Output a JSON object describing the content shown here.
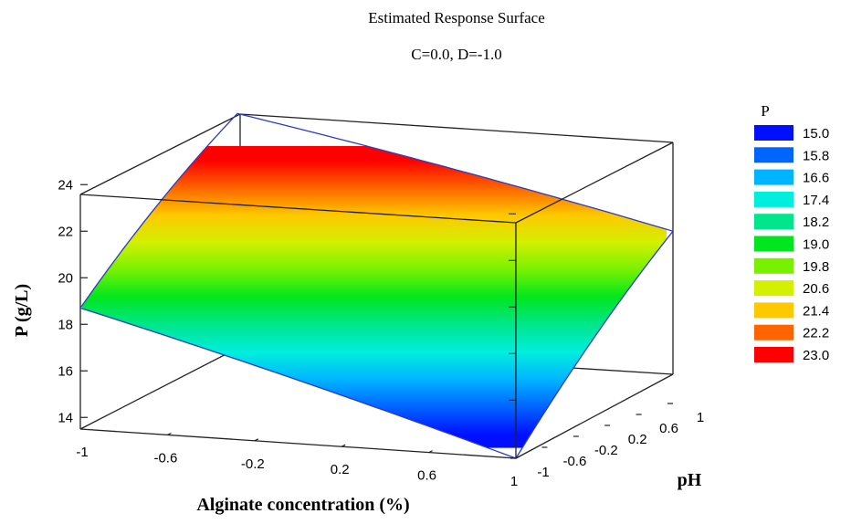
{
  "chart_data": {
    "type": "surface",
    "title": "Estimated Response Surface",
    "subtitle": "C=0.0, D=-1.0",
    "xlabel": "Alginate concentration (%)",
    "ylabel": "P (g/L)",
    "zlabel": "pH",
    "x_ticks": [
      "-1",
      "-0.6",
      "-0.2",
      "0.2",
      "0.6",
      "1"
    ],
    "y_ticks": [
      "14",
      "16",
      "18",
      "20",
      "22",
      "24"
    ],
    "z_ticks": [
      "-1",
      "-0.6",
      "-0.2",
      "0.2",
      "0.6",
      "1"
    ],
    "xlim": [
      -1,
      1
    ],
    "zlim": [
      -1,
      1
    ],
    "ylim": [
      13.5,
      24.5
    ],
    "corner_values": [
      {
        "alginate": -1,
        "ph": -1,
        "P": 18.7
      },
      {
        "alginate": 1,
        "ph": -1,
        "P": 13.5
      },
      {
        "alginate": -1,
        "ph": 1,
        "P": 24.7
      },
      {
        "alginate": 1,
        "ph": 1,
        "P": 20.9
      }
    ],
    "legend": {
      "title": "P",
      "position": "right",
      "entries": [
        {
          "label": "15.0",
          "color": "#0010ff"
        },
        {
          "label": "15.8",
          "color": "#0064ff"
        },
        {
          "label": "16.6",
          "color": "#00b4ff"
        },
        {
          "label": "17.4",
          "color": "#00eedd"
        },
        {
          "label": "18.2",
          "color": "#00e68c"
        },
        {
          "label": "19.0",
          "color": "#00e61e"
        },
        {
          "label": "19.8",
          "color": "#78f000"
        },
        {
          "label": "20.6",
          "color": "#d2f000"
        },
        {
          "label": "21.4",
          "color": "#ffc800"
        },
        {
          "label": "22.2",
          "color": "#ff6400"
        },
        {
          "label": "23.0",
          "color": "#ff0000"
        }
      ]
    }
  }
}
